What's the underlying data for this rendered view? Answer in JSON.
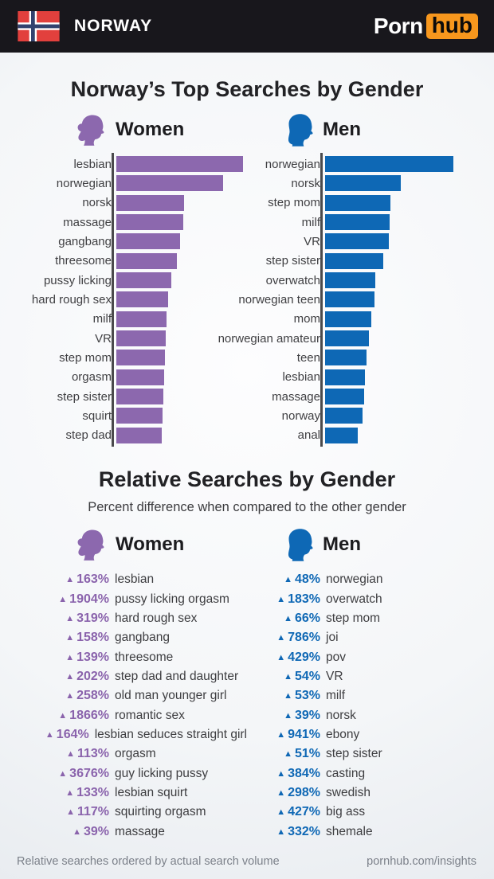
{
  "header": {
    "country": "NORWAY",
    "brand_porn": "Porn",
    "brand_hub": "hub",
    "flag_colors": {
      "red": "#e2403d",
      "white": "#ffffff",
      "blue": "#32426f"
    },
    "hub_badge_color": "#f7971d"
  },
  "labels": {
    "women": "Women",
    "men": "Men"
  },
  "colors": {
    "women": "#8c68ae",
    "men": "#0e68b5",
    "axis": "#4a4a4c",
    "header_bg": "#18171c"
  },
  "sections": {
    "top": {
      "title": "Norway’s Top Searches by Gender"
    },
    "relative": {
      "title": "Relative Searches by Gender",
      "subtitle": "Percent difference when compared to the other gender"
    }
  },
  "chart_data": [
    {
      "id": "women-top",
      "type": "bar",
      "orientation": "horizontal",
      "title": "Norway's Top Searches by Gender — Women",
      "units": "relative bar length in px (no numeric axis shown)",
      "color": "#8c68ae",
      "categories": [
        "lesbian",
        "norwegian",
        "norsk",
        "massage",
        "gangbang",
        "threesome",
        "pussy licking",
        "hard rough sex",
        "milf",
        "VR",
        "step mom",
        "orgasm",
        "step sister",
        "squirt",
        "step dad"
      ],
      "values": [
        159,
        134,
        85,
        84,
        80,
        76,
        69,
        65,
        63,
        62,
        61,
        60,
        59,
        58,
        57
      ]
    },
    {
      "id": "men-top",
      "type": "bar",
      "orientation": "horizontal",
      "title": "Norway's Top Searches by Gender — Men",
      "units": "relative bar length in px (no numeric axis shown)",
      "color": "#0e68b5",
      "categories": [
        "norwegian",
        "norsk",
        "step mom",
        "milf",
        "VR",
        "step sister",
        "overwatch",
        "norwegian teen",
        "mom",
        "norwegian amateur",
        "teen",
        "lesbian",
        "massage",
        "norway",
        "anal"
      ],
      "values": [
        161,
        95,
        82,
        81,
        80,
        73,
        63,
        62,
        58,
        55,
        52,
        50,
        49,
        47,
        41
      ]
    },
    {
      "id": "women-relative",
      "type": "table",
      "title": "Relative Searches by Gender — Women",
      "units": "percent difference vs other gender",
      "color": "#8a63ac",
      "categories": [
        "lesbian",
        "pussy licking orgasm",
        "hard rough sex",
        "gangbang",
        "threesome",
        "step dad and daughter",
        "old man younger girl",
        "romantic sex",
        "lesbian seduces straight girl",
        "orgasm",
        "guy licking pussy",
        "lesbian squirt",
        "squirting orgasm",
        "massage"
      ],
      "values": [
        163,
        1904,
        319,
        158,
        139,
        202,
        258,
        1866,
        164,
        113,
        3676,
        133,
        117,
        39
      ]
    },
    {
      "id": "men-relative",
      "type": "table",
      "title": "Relative Searches by Gender — Men",
      "units": "percent difference vs other gender",
      "color": "#0f68b5",
      "categories": [
        "norwegian",
        "overwatch",
        "step mom",
        "joi",
        "pov",
        "VR",
        "milf",
        "norsk",
        "ebony",
        "step sister",
        "casting",
        "swedish",
        "big ass",
        "shemale"
      ],
      "values": [
        48,
        183,
        66,
        786,
        429,
        54,
        53,
        39,
        941,
        51,
        384,
        298,
        427,
        332
      ]
    }
  ],
  "footer": {
    "left": "Relative searches ordered by actual search volume",
    "right": "pornhub.com/insights"
  }
}
